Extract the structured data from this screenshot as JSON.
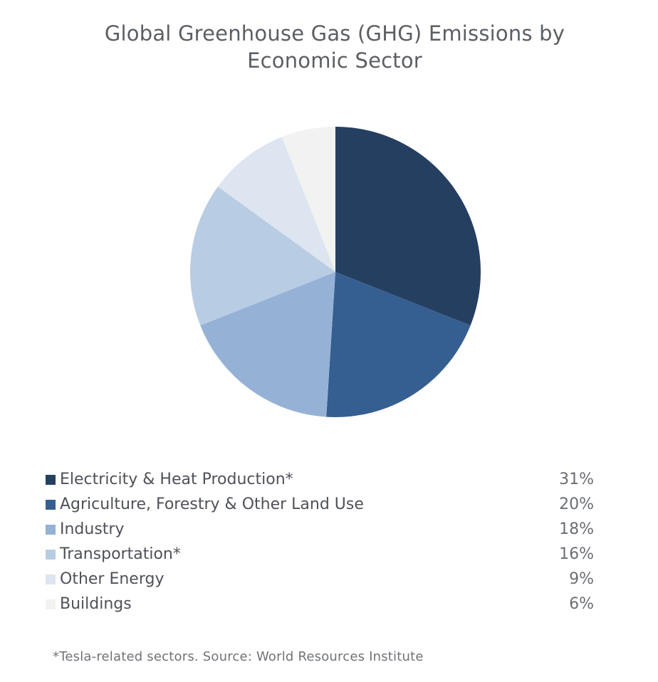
{
  "chart_data": {
    "type": "pie",
    "title_lines": [
      "Global Greenhouse Gas (GHG) Emissions by",
      "Economic Sector"
    ],
    "categories": [
      "Electricity & Heat Production*",
      "Agriculture, Forestry & Other Land Use",
      "Industry",
      "Transportation*",
      "Other Energy",
      "Buildings"
    ],
    "values": [
      31,
      20,
      18,
      16,
      9,
      6
    ],
    "value_labels": [
      "31%",
      "20%",
      "18%",
      "16%",
      "9%",
      "6%"
    ],
    "colors": [
      "#253f61",
      "#355f91",
      "#95b2d6",
      "#b8cce3",
      "#dce5f0",
      "#f2f2f2"
    ],
    "legend_position": "bottom",
    "footnote": "*Tesla-related sectors. Source: World Resources Institute"
  }
}
